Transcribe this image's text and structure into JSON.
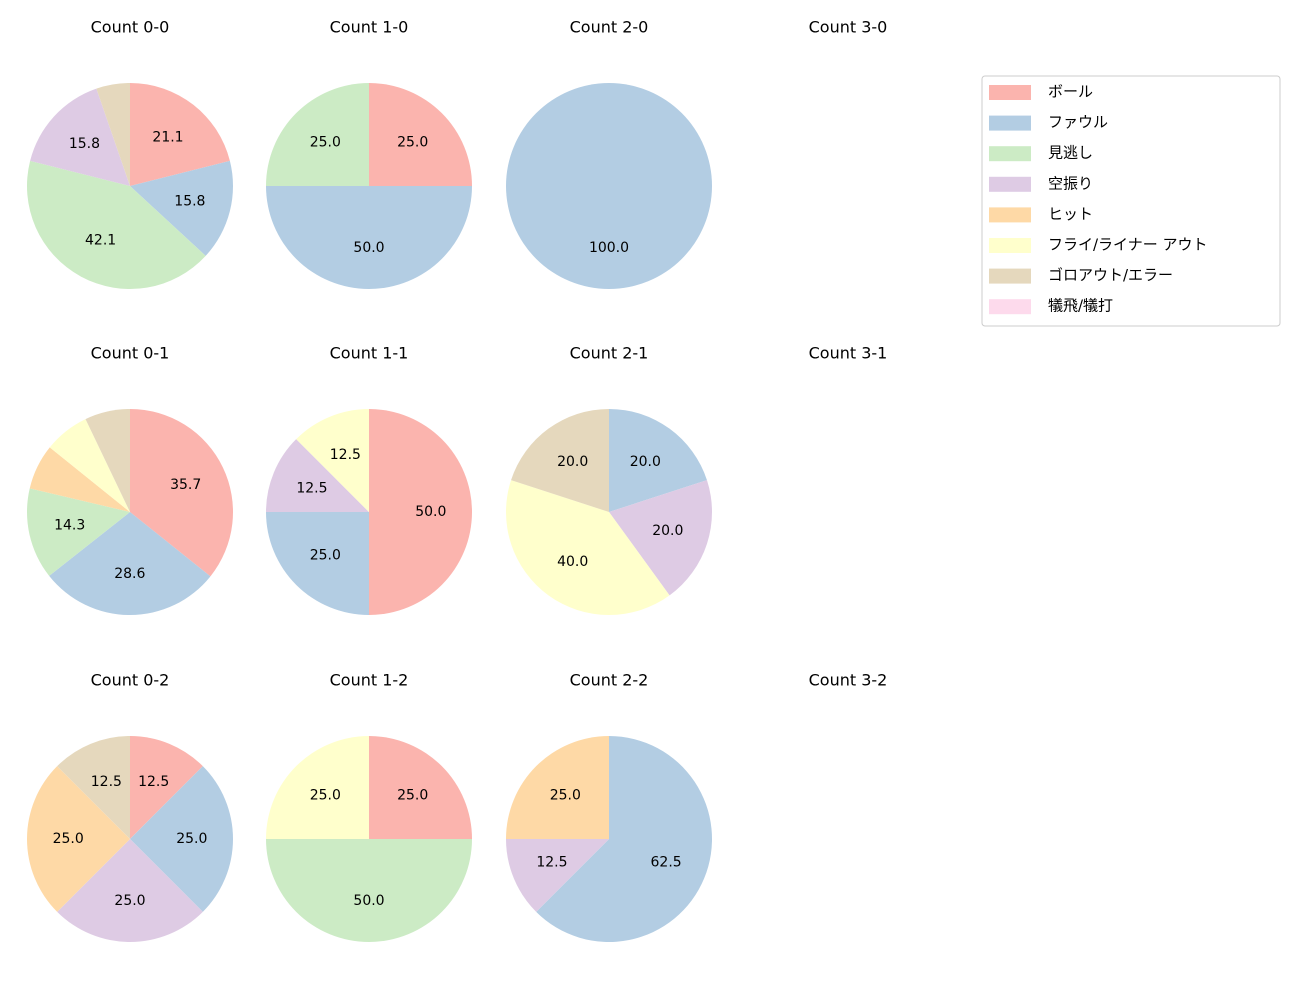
{
  "chart_data": {
    "type": "pie",
    "categories": [
      "ボール",
      "ファウル",
      "見逃し",
      "空振り",
      "ヒット",
      "フライ/ライナー アウト",
      "ゴロアウト/エラー",
      "犠飛/犠打"
    ],
    "colors": [
      "#fbb4ae",
      "#b3cde3",
      "#ccebc5",
      "#decbe4",
      "#fed9a6",
      "#ffffcc",
      "#e5d8bd",
      "#fddaec"
    ],
    "legend": "upper right",
    "charts": [
      {
        "title": "Count 0-0",
        "values": [
          21.1,
          15.8,
          42.1,
          15.8,
          null,
          null,
          5.3,
          null
        ],
        "value_labels": [
          "21.1",
          "15.8",
          "42.1",
          "15.8",
          null,
          null,
          null,
          null
        ]
      },
      {
        "title": "Count 1-0",
        "values": [
          25,
          50,
          25,
          null,
          null,
          null,
          null,
          null
        ],
        "value_labels": [
          "25.0",
          "50.0",
          "25.0",
          null,
          null,
          null,
          null,
          null
        ]
      },
      {
        "title": "Count 2-0",
        "values": [
          null,
          100,
          null,
          null,
          null,
          null,
          null,
          null
        ],
        "value_labels": [
          null,
          "100.0",
          null,
          null,
          null,
          null,
          null,
          null
        ]
      },
      {
        "title": "Count 3-0"
      },
      {
        "title": "Count 0-1",
        "values": [
          35.7,
          28.6,
          14.3,
          null,
          7.1,
          7.1,
          7.1,
          null
        ],
        "value_labels": [
          "35.7",
          "28.6",
          "14.3",
          null,
          null,
          null,
          null,
          null
        ]
      },
      {
        "title": "Count 1-1",
        "values": [
          50,
          25,
          null,
          12.5,
          null,
          12.5,
          null,
          null
        ],
        "value_labels": [
          "50.0",
          "25.0",
          null,
          "12.5",
          null,
          "12.5",
          null,
          null
        ]
      },
      {
        "title": "Count 2-1",
        "values": [
          null,
          20,
          null,
          20,
          null,
          40,
          20,
          null
        ],
        "value_labels": [
          null,
          "20.0",
          null,
          "20.0",
          null,
          "40.0",
          "20.0",
          null
        ]
      },
      {
        "title": "Count 3-1"
      },
      {
        "title": "Count 0-2",
        "values": [
          12.5,
          25,
          null,
          25,
          25,
          null,
          12.5,
          null
        ],
        "value_labels": [
          "12.5",
          "25.0",
          null,
          "25.0",
          "25.0",
          null,
          "12.5",
          null
        ]
      },
      {
        "title": "Count 1-2",
        "values": [
          25,
          null,
          50,
          null,
          null,
          25,
          null,
          null
        ],
        "value_labels": [
          "25.0",
          null,
          "50.0",
          null,
          null,
          "25.0",
          null,
          null
        ]
      },
      {
        "title": "Count 2-2",
        "values": [
          null,
          62.5,
          null,
          12.5,
          25,
          null,
          null,
          null
        ],
        "value_labels": [
          null,
          "62.5",
          null,
          "12.5",
          "25.0",
          null,
          null,
          null
        ]
      },
      {
        "title": "Count 3-2"
      }
    ]
  }
}
